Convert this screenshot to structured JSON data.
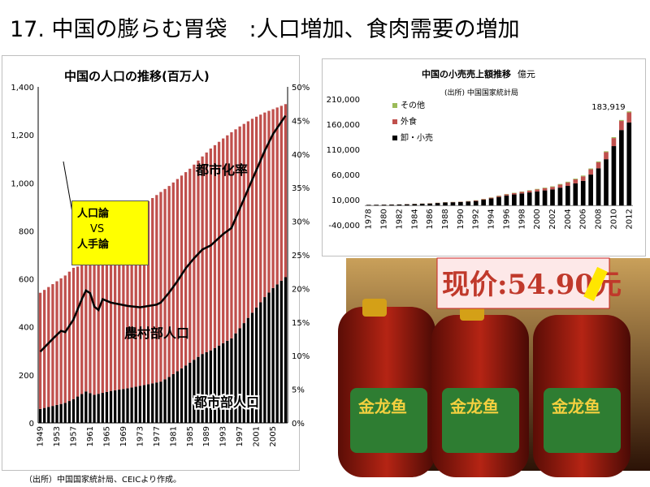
{
  "page": {
    "title": "17. 中国の膨らむ胃袋　:人口増加、食肉需要の増加",
    "source": "（出所）中国国家統計局、CEICより作成。"
  },
  "left_chart": {
    "title": "中国の人口の推移(百万人)",
    "callout_lines": [
      "人口論",
      "VS",
      "人手論"
    ],
    "label_urban_rate": "都市化率",
    "label_rural": "農村部人口",
    "label_urban": "都市部人口"
  },
  "right_chart": {
    "title": "中国の小売売上額推移",
    "unit": "億元",
    "source_note": "(出所) 中国国家統計局",
    "peak_label": "183,919"
  },
  "photo": {
    "price_sign": "现价:54.90元",
    "brand": "金龙鱼",
    "colors": {
      "oil": "#a51c12",
      "label_green": "#2e7d32",
      "cap_gold": "#d4a017"
    }
  },
  "chart_data": [
    {
      "type": "bar",
      "stacked": true,
      "title": "中国の人口の推移(百万人)",
      "x_tick_labels": [
        "1949",
        "1953",
        "1957",
        "1961",
        "1965",
        "1969",
        "1973",
        "1977",
        "1981",
        "1985",
        "1989",
        "1993",
        "1997",
        "2001",
        "2005"
      ],
      "x_range": [
        1949,
        2008
      ],
      "ylim": [
        0,
        1400
      ],
      "y_ticks": [
        0,
        200,
        400,
        600,
        800,
        1000,
        1200,
        1400
      ],
      "y2lim": [
        0,
        50
      ],
      "y2_ticks": [
        "0%",
        "5%",
        "10%",
        "15%",
        "20%",
        "25%",
        "30%",
        "35%",
        "40%",
        "45%",
        "50%"
      ],
      "series": [
        {
          "name": "都市部人口",
          "points": [
            [
              1949,
              58
            ],
            [
              1955,
              83
            ],
            [
              1957,
              99
            ],
            [
              1960,
              131
            ],
            [
              1962,
              117
            ],
            [
              1966,
              133
            ],
            [
              1970,
              144
            ],
            [
              1975,
              161
            ],
            [
              1978,
              172
            ],
            [
              1980,
              191
            ],
            [
              1982,
              215
            ],
            [
              1985,
              251
            ],
            [
              1988,
              287
            ],
            [
              1990,
              302
            ],
            [
              1993,
              332
            ],
            [
              1995,
              352
            ],
            [
              1997,
              394
            ],
            [
              2000,
              459
            ],
            [
              2003,
              524
            ],
            [
              2005,
              562
            ],
            [
              2008,
              607
            ]
          ]
        },
        {
          "name": "農村部人口",
          "points": [
            [
              1949,
              484
            ],
            [
              1955,
              531
            ],
            [
              1957,
              547
            ],
            [
              1960,
              531
            ],
            [
              1962,
              556
            ],
            [
              1966,
              612
            ],
            [
              1970,
              685
            ],
            [
              1975,
              763
            ],
            [
              1978,
              790
            ],
            [
              1980,
              796
            ],
            [
              1982,
              801
            ],
            [
              1985,
              808
            ],
            [
              1988,
              823
            ],
            [
              1990,
              841
            ],
            [
              1993,
              853
            ],
            [
              1995,
              859
            ],
            [
              1997,
              841
            ],
            [
              2000,
              808
            ],
            [
              2003,
              769
            ],
            [
              2005,
              745
            ],
            [
              2008,
              721
            ]
          ]
        }
      ],
      "line_series": {
        "name": "都市化率",
        "axis": "right",
        "points": [
          [
            1949,
            10.6
          ],
          [
            1952,
            12.5
          ],
          [
            1954,
            13.7
          ],
          [
            1955,
            13.5
          ],
          [
            1957,
            15.4
          ],
          [
            1959,
            18.4
          ],
          [
            1960,
            19.7
          ],
          [
            1961,
            19.3
          ],
          [
            1962,
            17.3
          ],
          [
            1963,
            16.8
          ],
          [
            1964,
            18.4
          ],
          [
            1966,
            17.9
          ],
          [
            1970,
            17.4
          ],
          [
            1973,
            17.2
          ],
          [
            1977,
            17.6
          ],
          [
            1978,
            17.9
          ],
          [
            1980,
            19.4
          ],
          [
            1982,
            21.1
          ],
          [
            1984,
            23.0
          ],
          [
            1986,
            24.5
          ],
          [
            1988,
            25.8
          ],
          [
            1990,
            26.4
          ],
          [
            1993,
            28.1
          ],
          [
            1995,
            29.0
          ],
          [
            1997,
            31.9
          ],
          [
            2000,
            36.2
          ],
          [
            2003,
            40.5
          ],
          [
            2005,
            43.0
          ],
          [
            2008,
            45.7
          ]
        ]
      }
    },
    {
      "type": "bar",
      "stacked": true,
      "title": "中国の小売売上額推移",
      "unit": "億元",
      "categories": [
        "1978",
        "1980",
        "1982",
        "1984",
        "1986",
        "1988",
        "1990",
        "1992",
        "1994",
        "1996",
        "1998",
        "2000",
        "2002",
        "2004",
        "2006",
        "2008",
        "2010",
        "2012"
      ],
      "ylim": [
        -40000,
        210000
      ],
      "y_ticks": [
        "-40,000",
        "10,000",
        "60,000",
        "110,000",
        "160,000",
        "210,000"
      ],
      "peak_value": 183919,
      "series": [
        {
          "name": "卸・小売",
          "color": "#000000",
          "points": [
            [
              1978,
              1300
            ],
            [
              1982,
              2000
            ],
            [
              1986,
              4000
            ],
            [
              1988,
              6000
            ],
            [
              1990,
              7000
            ],
            [
              1992,
              9000
            ],
            [
              1994,
              14000
            ],
            [
              1996,
              20000
            ],
            [
              1998,
              24000
            ],
            [
              2000,
              28000
            ],
            [
              2002,
              32000
            ],
            [
              2004,
              39000
            ],
            [
              2006,
              49000
            ],
            [
              2008,
              74000
            ],
            [
              2009,
              92000
            ],
            [
              2010,
              118000
            ],
            [
              2011,
              150000
            ],
            [
              2012,
              165000
            ]
          ]
        },
        {
          "name": "外食",
          "color": "#c0504d",
          "points": [
            [
              1978,
              100
            ],
            [
              1990,
              500
            ],
            [
              1994,
              1500
            ],
            [
              1998,
              3000
            ],
            [
              2002,
              5000
            ],
            [
              2006,
              9000
            ],
            [
              2008,
              12000
            ],
            [
              2010,
              16000
            ],
            [
              2012,
              20000
            ]
          ]
        },
        {
          "name": "その他",
          "color": "#9bbb59",
          "points": [
            [
              1978,
              0
            ],
            [
              1990,
              300
            ],
            [
              2000,
              1000
            ],
            [
              2012,
              2000
            ]
          ]
        }
      ]
    }
  ]
}
